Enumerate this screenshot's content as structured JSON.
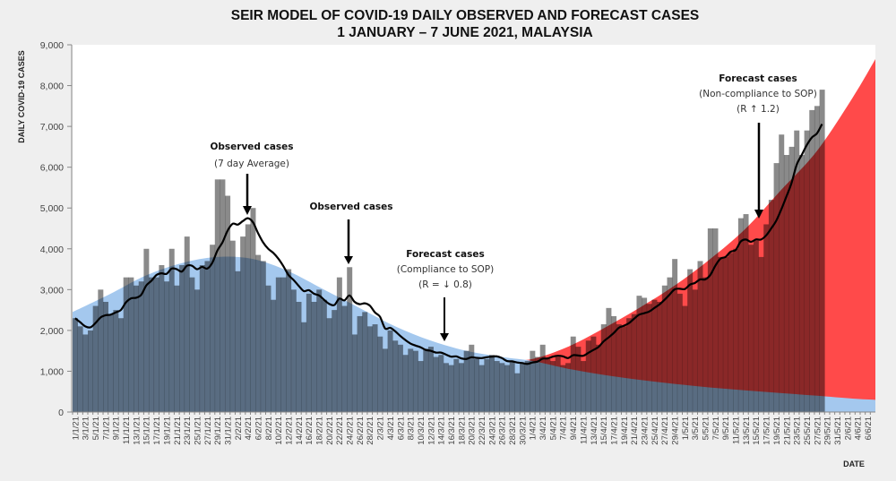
{
  "chart_data": {
    "type": "bar+line+area",
    "title_line1": "SEIR MODEL OF COVID-19 DAILY OBSERVED AND FORECAST CASES",
    "title_line2": "1 JANUARY  – 7 JUNE  2021, MALAYSIA",
    "ylabel": "DAILY COVID-19 CASES",
    "xlabel": "DATE",
    "ylim": [
      0,
      9000
    ],
    "yticks": [
      "0",
      "1,000",
      "2,000",
      "3,000",
      "4,000",
      "5,000",
      "6,000",
      "7,000",
      "8,000",
      "9,000"
    ],
    "x_range": [
      "1/1/21",
      "7/6/21"
    ],
    "x_tick_every_days": 2,
    "colors": {
      "observed_bars": "#8a8a8a",
      "seven_day_average": "#000000",
      "forecast_compliance": "#a4c8ee",
      "forecast_noncompliance": "#ff4a4a",
      "plot_background": "#ffffff",
      "page_background": "#efefef"
    },
    "observed_daily": {
      "start": "1/1/21",
      "values": [
        2300,
        2100,
        1900,
        2000,
        2600,
        3000,
        2700,
        2400,
        2500,
        2300,
        3300,
        3300,
        3100,
        3200,
        4000,
        3300,
        3300,
        3600,
        3200,
        4000,
        3100,
        3600,
        4300,
        3300,
        3000,
        3600,
        3700,
        4100,
        5700,
        5700,
        5300,
        4200,
        3450,
        4300,
        4600,
        5000,
        3850,
        3700,
        3100,
        2750,
        3300,
        3300,
        3500,
        3000,
        2700,
        2200,
        2900,
        2700,
        3000,
        2750,
        2300,
        2500,
        3300,
        2600,
        3550,
        1900,
        2350,
        2450,
        2100,
        2150,
        1850,
        1550,
        2000,
        1750,
        1650,
        1400,
        1550,
        1500,
        1250,
        1550,
        1600,
        1350,
        1400,
        1200,
        1150,
        1300,
        1200,
        1500,
        1650,
        1300,
        1150,
        1300,
        1400,
        1250,
        1200,
        1150,
        1250,
        950,
        1200,
        1250,
        1500,
        1350,
        1650,
        1300,
        1250,
        1350,
        1150,
        1200,
        1850,
        1600,
        1250,
        1750,
        1850,
        1650,
        2150,
        2550,
        2350,
        2150,
        2100,
        2300,
        2400,
        2850,
        2800,
        2650,
        2750,
        2700,
        3100,
        3300,
        3750,
        2900,
        2600,
        3500,
        3000,
        3700,
        3300,
        4500,
        4500,
        3800,
        3800,
        3900,
        4000,
        4750,
        4850,
        4100,
        4200,
        3800,
        4600,
        5200,
        6100,
        6800,
        6300,
        6500,
        6900,
        6300,
        6900,
        7400,
        7500,
        7900
      ]
    },
    "seven_day_average_window": 7,
    "forecast_compliance": [
      [
        "1/1/21",
        2450
      ],
      [
        "8/1/21",
        2900
      ],
      [
        "15/1/21",
        3350
      ],
      [
        "22/1/21",
        3650
      ],
      [
        "29/1/21",
        3800
      ],
      [
        "5/2/21",
        3750
      ],
      [
        "12/2/21",
        3450
      ],
      [
        "19/2/21",
        3000
      ],
      [
        "26/2/21",
        2550
      ],
      [
        "5/3/21",
        2100
      ],
      [
        "12/3/21",
        1750
      ],
      [
        "19/3/21",
        1500
      ],
      [
        "26/3/21",
        1350
      ],
      [
        "1/4/21",
        1250
      ],
      [
        "8/4/21",
        1060
      ],
      [
        "15/4/21",
        910
      ],
      [
        "22/4/21",
        790
      ],
      [
        "29/4/21",
        690
      ],
      [
        "6/5/21",
        600
      ],
      [
        "13/5/21",
        530
      ],
      [
        "20/5/21",
        465
      ],
      [
        "27/5/21",
        400
      ],
      [
        "3/6/21",
        330
      ],
      [
        "7/6/21",
        300
      ]
    ],
    "forecast_noncompliance": [
      [
        "26/3/21",
        1250
      ],
      [
        "1/4/21",
        1300
      ],
      [
        "8/4/21",
        1600
      ],
      [
        "15/4/21",
        2050
      ],
      [
        "22/4/21",
        2550
      ],
      [
        "29/4/21",
        3100
      ],
      [
        "6/5/21",
        3750
      ],
      [
        "13/5/21",
        4500
      ],
      [
        "20/5/21",
        5450
      ],
      [
        "27/5/21",
        6400
      ],
      [
        "3/6/21",
        7700
      ],
      [
        "7/6/21",
        8650
      ]
    ],
    "annotations": {
      "observed_avg": {
        "title": "Observed cases",
        "sub": "(7 day Average)"
      },
      "observed": {
        "title": "Observed cases"
      },
      "compliance": {
        "title": "Forecast cases",
        "sub": "(Compliance to SOP)",
        "r": "(R = ↓ 0.8)"
      },
      "noncompliance": {
        "title": "Forecast cases",
        "sub": "(Non-compliance to SOP)",
        "r": "(R ↑ 1.2)"
      }
    }
  }
}
